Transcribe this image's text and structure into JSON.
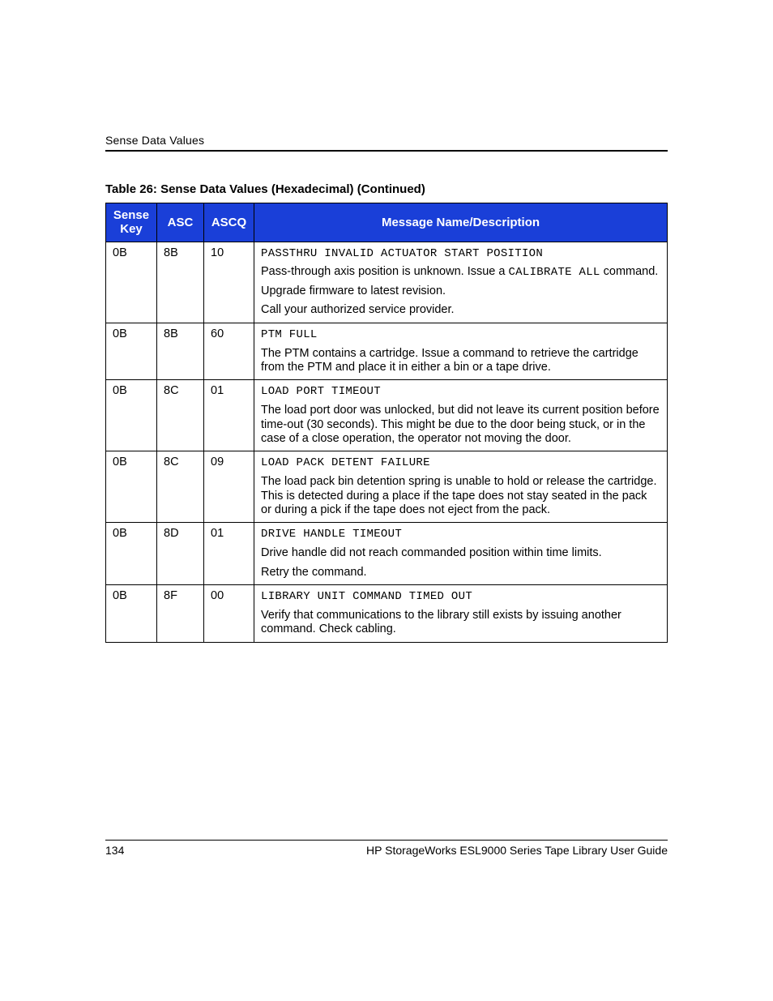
{
  "header": {
    "running_head": "Sense Data Values"
  },
  "caption": "Table 26:  Sense Data Values (Hexadecimal)  (Continued)",
  "columns": {
    "c1": "Sense Key",
    "c2": "ASC",
    "c3": "ASCQ",
    "c4": "Message Name/Description"
  },
  "rows": [
    {
      "sense": "0B",
      "asc": "8B",
      "ascq": "10",
      "title_mono": "PASSTHRU INVALID ACTUATOR START POSITION",
      "p1a": "Pass-through axis position is unknown. Issue a ",
      "p1_mono": "CALIBRATE ALL",
      "p1b": " command.",
      "p2": "Upgrade firmware to latest revision.",
      "p3": "Call your authorized service provider."
    },
    {
      "sense": "0B",
      "asc": "8B",
      "ascq": "60",
      "title_mono": "PTM FULL",
      "p1": "The PTM contains a cartridge. Issue a command to retrieve the cartridge from the PTM and place it in either a bin or a tape drive."
    },
    {
      "sense": "0B",
      "asc": "8C",
      "ascq": "01",
      "title_mono": "LOAD PORT TIMEOUT",
      "p1": "The load port door was unlocked, but did not leave its current position before time-out (30 seconds). This might be due to the door being stuck, or in the case of a close operation, the operator not moving the door."
    },
    {
      "sense": "0B",
      "asc": "8C",
      "ascq": "09",
      "title_mono": "LOAD PACK DETENT FAILURE",
      "p1": "The load pack bin detention spring is unable to hold or release the cartridge. This is detected during a place if the tape does not stay seated in the pack or during a pick if the tape does not eject from the pack."
    },
    {
      "sense": "0B",
      "asc": "8D",
      "ascq": "01",
      "title_mono": "DRIVE HANDLE TIMEOUT",
      "p1": "Drive handle did not reach commanded position within time limits.",
      "p2": "Retry the command."
    },
    {
      "sense": "0B",
      "asc": "8F",
      "ascq": "00",
      "title_mono": "LIBRARY UNIT COMMAND TIMED OUT",
      "p1": "Verify that communications to the library still exists by issuing another command. Check cabling."
    }
  ],
  "footer": {
    "page": "134",
    "title": "HP StorageWorks ESL9000 Series Tape Library User Guide"
  },
  "col_widths": {
    "c1": "63px",
    "c2": "58px",
    "c3": "62px",
    "c4": "auto"
  }
}
